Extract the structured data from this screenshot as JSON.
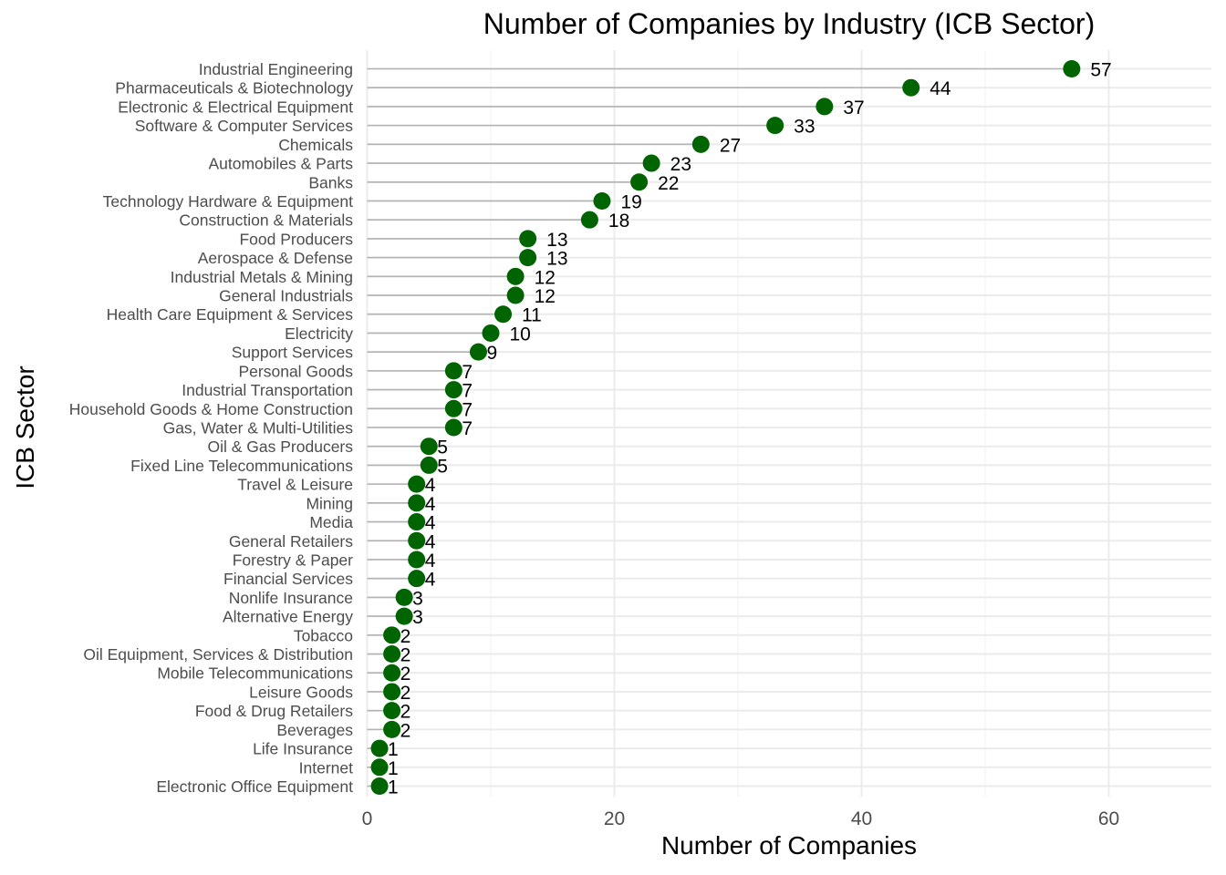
{
  "chart_data": {
    "type": "scatter",
    "style": "lollipop",
    "title": "Number of Companies by Industry (ICB Sector)",
    "xlabel": "Number of Companies",
    "ylabel": "ICB Sector",
    "xlim": [
      0,
      68
    ],
    "x_ticks": [
      0,
      20,
      40,
      60
    ],
    "grid": true,
    "legend": "none",
    "point_color": "#006400",
    "stem_color": "#b3b3b3",
    "categories": [
      "Industrial Engineering",
      "Pharmaceuticals & Biotechnology",
      "Electronic & Electrical Equipment",
      "Software & Computer Services",
      "Chemicals",
      "Automobiles & Parts",
      "Banks",
      "Technology Hardware & Equipment",
      "Construction & Materials",
      "Food Producers",
      "Aerospace & Defense",
      "Industrial Metals & Mining",
      "General Industrials",
      "Health Care Equipment & Services",
      "Electricity",
      "Support Services",
      "Personal Goods",
      "Industrial Transportation",
      "Household Goods & Home Construction",
      "Gas, Water & Multi-Utilities",
      "Oil & Gas Producers",
      "Fixed Line Telecommunications",
      "Travel & Leisure",
      "Mining",
      "Media",
      "General Retailers",
      "Forestry & Paper",
      "Financial Services",
      "Nonlife Insurance",
      "Alternative Energy",
      "Tobacco",
      "Oil Equipment, Services & Distribution",
      "Mobile Telecommunications",
      "Leisure Goods",
      "Food & Drug Retailers",
      "Beverages",
      "Life Insurance",
      "Internet",
      "Electronic Office Equipment"
    ],
    "values": [
      57,
      44,
      37,
      33,
      27,
      23,
      22,
      19,
      18,
      13,
      13,
      12,
      12,
      11,
      10,
      9,
      7,
      7,
      7,
      7,
      5,
      5,
      4,
      4,
      4,
      4,
      4,
      4,
      3,
      3,
      2,
      2,
      2,
      2,
      2,
      2,
      1,
      1,
      1
    ]
  }
}
